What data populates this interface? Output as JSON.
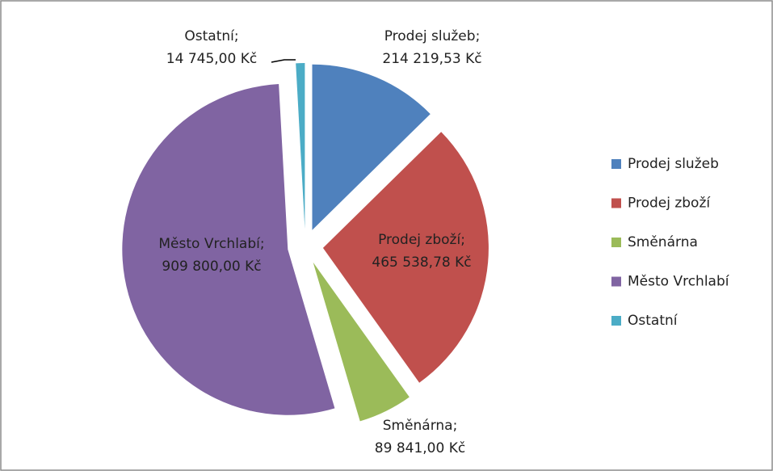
{
  "chart_data": {
    "type": "pie",
    "categories": [
      "Prodej služeb",
      "Prodej zboží",
      "Směnárna",
      "Město Vrchlabí",
      "Ostatní"
    ],
    "values": [
      214219.53,
      465538.78,
      89841.0,
      909800.0,
      14745.0
    ],
    "value_labels": [
      "214 219,53 Kč",
      "465 538,78 Kč",
      "89 841,00 Kč",
      "909 800,00 Kč",
      "14 745,00 Kč"
    ],
    "label_separator": ";",
    "colors": [
      "#4f81bd",
      "#c0504d",
      "#9bbb59",
      "#8064a2",
      "#4bacc6"
    ],
    "legend": "right"
  }
}
